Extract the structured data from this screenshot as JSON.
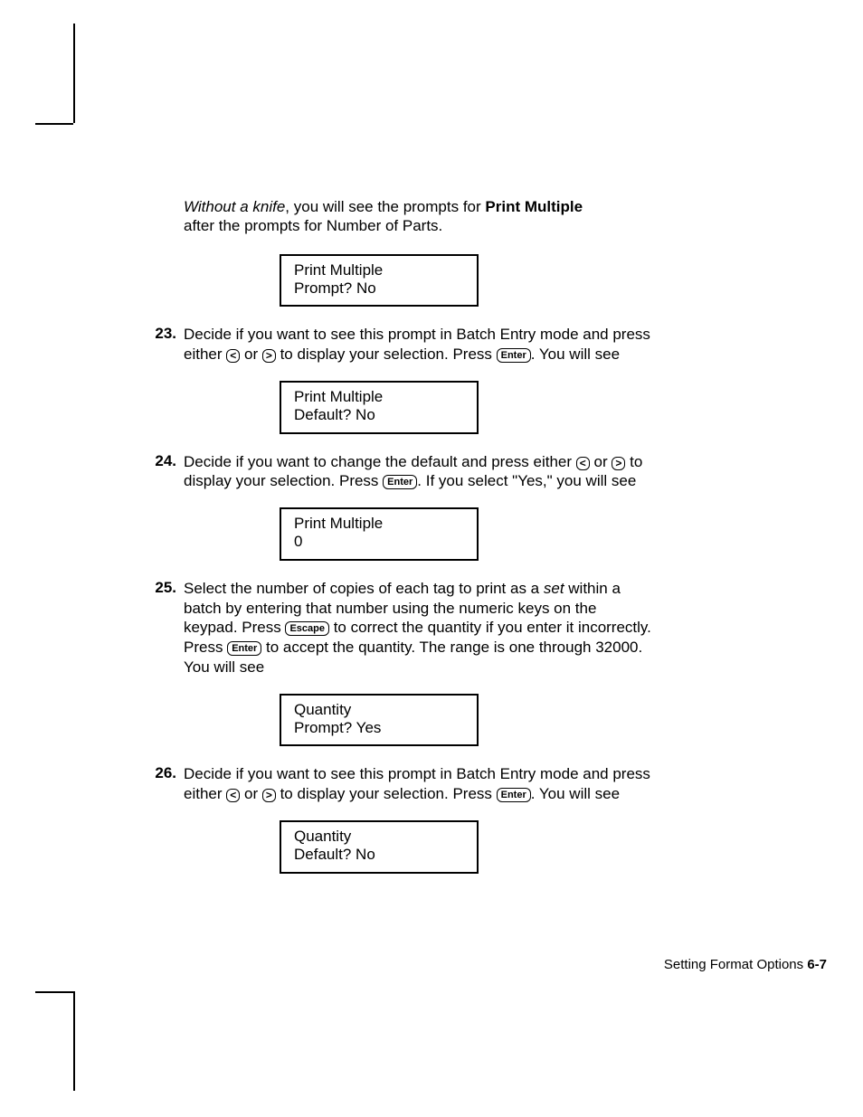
{
  "intro": {
    "ital": "Without a knife",
    "rest1": ", you will see the prompts for ",
    "bold": "Print Multiple",
    "rest2": "after the prompts for Number of Parts."
  },
  "box1": {
    "line1": "Print Multiple",
    "line2": "Prompt?  No"
  },
  "step23": {
    "num": "23.",
    "pre": "Decide if you want to see this prompt in Batch Entry mode and press either ",
    "key_l": "<",
    "mid": " or ",
    "key_r": ">",
    "mid2": " to display your selection.  Press ",
    "key_enter": "Enter",
    "post": ".  You will see"
  },
  "box2": {
    "line1": "Print Multiple",
    "line2": "Default?  No"
  },
  "step24": {
    "num": "24.",
    "pre": "Decide if you want to change the default and press either ",
    "key_l": "<",
    "mid": " or ",
    "key_r": ">",
    "mid2": " to display your selection.  Press ",
    "key_enter": "Enter",
    "post": ".  If you select \"Yes,\" you will see"
  },
  "box3": {
    "line1": "Print Multiple",
    "line2": "0"
  },
  "step25": {
    "num": "25.",
    "t1": "Select the number of copies of each tag to print as a ",
    "set": "set",
    "t2": " within a batch by entering that number using the numeric keys on the keypad.  Press ",
    "key_escape": "Escape",
    "t3": " to correct the quantity if you enter it incorrectly.  Press ",
    "key_enter": "Enter",
    "t4": " to accept the quantity.  The range is one through 32000.  You will see"
  },
  "box4": {
    "line1": "Quantity",
    "line2": "Prompt?  Yes"
  },
  "step26": {
    "num": "26.",
    "pre": "Decide if you want to see this prompt in Batch Entry mode and press either ",
    "key_l": "<",
    "mid": " or ",
    "key_r": ">",
    "mid2": " to display your selection.  Press ",
    "key_enter": "Enter",
    "post": ".  You will see"
  },
  "box5": {
    "line1": "Quantity",
    "line2": "Default?  No"
  },
  "footer": {
    "label": "Setting Format Options  ",
    "page": "6-7"
  }
}
